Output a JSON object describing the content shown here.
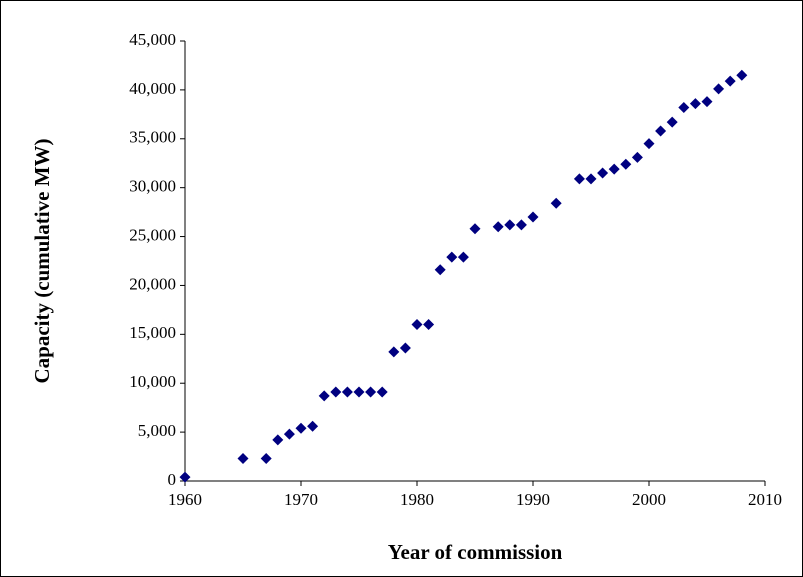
{
  "chart_data": {
    "type": "scatter",
    "xlabel": "Year of commission",
    "ylabel": "Capacity (cumulative MW)",
    "color": "#000080",
    "x": [
      1960,
      1965,
      1967,
      1968,
      1969,
      1970,
      1971,
      1972,
      1973,
      1974,
      1975,
      1976,
      1977,
      1978,
      1979,
      1980,
      1981,
      1982,
      1983,
      1984,
      1985,
      1987,
      1988,
      1989,
      1990,
      1992,
      1994,
      1995,
      1996,
      1997,
      1998,
      1999,
      2000,
      2001,
      2002,
      2003,
      2004,
      2005,
      2006,
      2007,
      2008
    ],
    "values": [
      400,
      2300,
      2300,
      4200,
      4800,
      5400,
      5600,
      8700,
      9100,
      9100,
      9100,
      9100,
      9100,
      13200,
      13600,
      16000,
      16000,
      21600,
      22900,
      22900,
      25800,
      26000,
      26200,
      26200,
      27000,
      28400,
      30900,
      30900,
      31500,
      31900,
      32400,
      33100,
      34500,
      35800,
      36700,
      38200,
      38600,
      38800,
      40100,
      40900,
      41500
    ],
    "xlim": [
      1960,
      2010
    ],
    "xticks": [
      1960,
      1970,
      1980,
      1990,
      2000,
      2010
    ],
    "ylim": [
      0,
      45000
    ],
    "yticks": [
      0,
      {
        "value": 5000,
        "label": "5,000"
      },
      {
        "value": 10000,
        "label": "10,000"
      },
      {
        "value": 15000,
        "label": "15,000"
      },
      {
        "value": 20000,
        "label": "20,000"
      },
      {
        "value": 25000,
        "label": "25,000"
      },
      {
        "value": 30000,
        "label": "30,000"
      },
      {
        "value": 35000,
        "label": "35,000"
      },
      {
        "value": 40000,
        "label": "40,000"
      },
      {
        "value": 45000,
        "label": "45,000"
      }
    ],
    "grid": false
  }
}
